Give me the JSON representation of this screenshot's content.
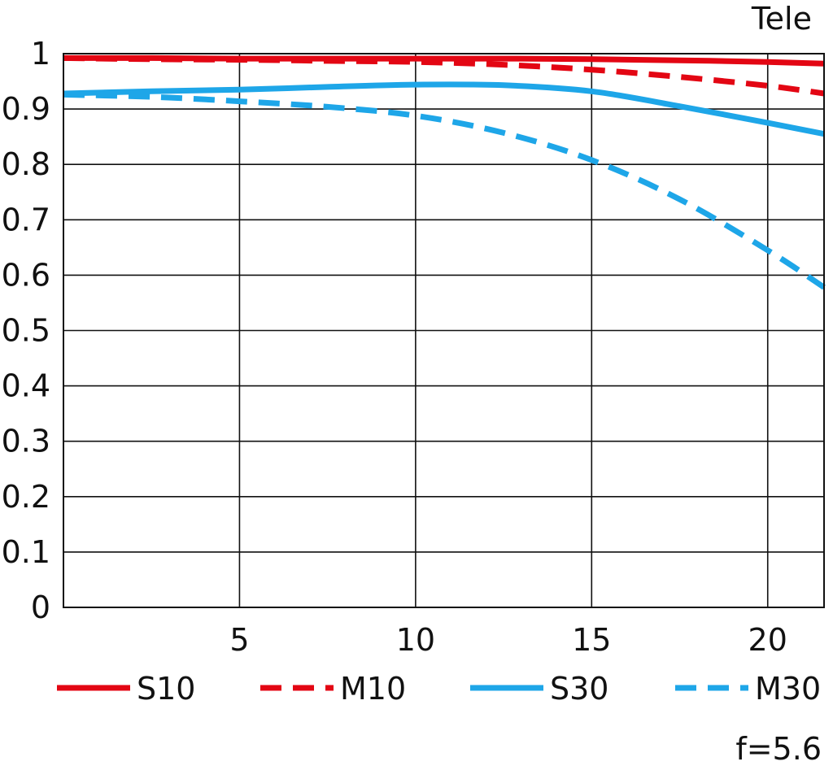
{
  "chart_data": {
    "type": "line",
    "title": "Tele",
    "note": "f=5.6",
    "xlim": [
      0,
      21.6
    ],
    "ylim": [
      0,
      1
    ],
    "x_ticks": [
      5,
      10,
      15,
      20
    ],
    "x_tick_labels": [
      "5",
      "10",
      "15",
      "20"
    ],
    "y_ticks": [
      0,
      0.1,
      0.2,
      0.3,
      0.4,
      0.5,
      0.6,
      0.7,
      0.8,
      0.9,
      1
    ],
    "y_tick_labels": [
      "0",
      "0.1",
      "0.2",
      "0.3",
      "0.4",
      "0.5",
      "0.6",
      "0.7",
      "0.8",
      "0.9",
      "1"
    ],
    "grid": true,
    "legend_position": "bottom",
    "series": [
      {
        "name": "S10",
        "color": "#e30613",
        "style": "solid",
        "x": [
          0,
          2.5,
          5,
          7.5,
          10,
          12.5,
          15,
          17.5,
          20,
          21.6
        ],
        "y": [
          0.992,
          0.992,
          0.991,
          0.991,
          0.991,
          0.991,
          0.99,
          0.988,
          0.985,
          0.982
        ]
      },
      {
        "name": "M10",
        "color": "#e30613",
        "style": "dashed",
        "x": [
          0,
          2.5,
          5,
          7.5,
          10,
          12.5,
          15,
          17.5,
          20,
          21.6
        ],
        "y": [
          0.992,
          0.99,
          0.989,
          0.987,
          0.985,
          0.98,
          0.971,
          0.958,
          0.942,
          0.928
        ]
      },
      {
        "name": "S30",
        "color": "#1ea6e8",
        "style": "solid",
        "x": [
          0,
          2.5,
          5,
          7.5,
          10,
          12.5,
          15,
          17.5,
          20,
          21.6
        ],
        "y": [
          0.928,
          0.932,
          0.935,
          0.94,
          0.944,
          0.943,
          0.932,
          0.905,
          0.875,
          0.855
        ]
      },
      {
        "name": "M30",
        "color": "#1ea6e8",
        "style": "dashed",
        "x": [
          0,
          2.5,
          5,
          7.5,
          10,
          12.5,
          15,
          17.5,
          20,
          21.6
        ],
        "y": [
          0.926,
          0.922,
          0.914,
          0.904,
          0.888,
          0.857,
          0.808,
          0.737,
          0.645,
          0.578
        ]
      }
    ]
  }
}
